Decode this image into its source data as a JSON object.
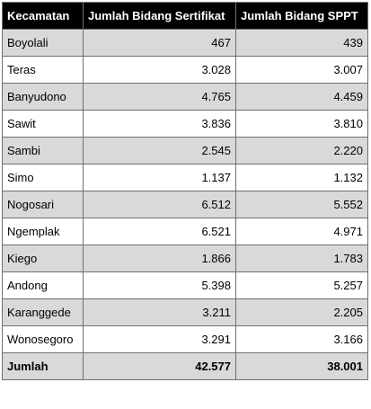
{
  "table": {
    "headers": [
      "Kecamatan",
      "Jumlah Bidang Sertifikat",
      "Jumlah Bidang SPPT"
    ],
    "rows": [
      [
        "Boyolali",
        "467",
        "439"
      ],
      [
        "Teras",
        "3.028",
        "3.007"
      ],
      [
        "Banyudono",
        "4.765",
        "4.459"
      ],
      [
        "Sawit",
        "3.836",
        "3.810"
      ],
      [
        "Sambi",
        "2.545",
        "2.220"
      ],
      [
        "Simo",
        "1.137",
        "1.132"
      ],
      [
        "Nogosari",
        "6.512",
        "5.552"
      ],
      [
        "Ngemplak",
        "6.521",
        "4.971"
      ],
      [
        "Kiego",
        "1.866",
        "1.783"
      ],
      [
        "Andong",
        "5.398",
        "5.257"
      ],
      [
        "Karanggede",
        "3.211",
        "2.205"
      ],
      [
        "Wonosegoro",
        "3.291",
        "3.166"
      ]
    ],
    "total": [
      "Jumlah",
      "42.577",
      "38.001"
    ]
  },
  "colors": {
    "header_bg": "#000000",
    "header_text": "#ffffff",
    "stripe": "#d9d9d9",
    "border": "#6f6f6f"
  }
}
